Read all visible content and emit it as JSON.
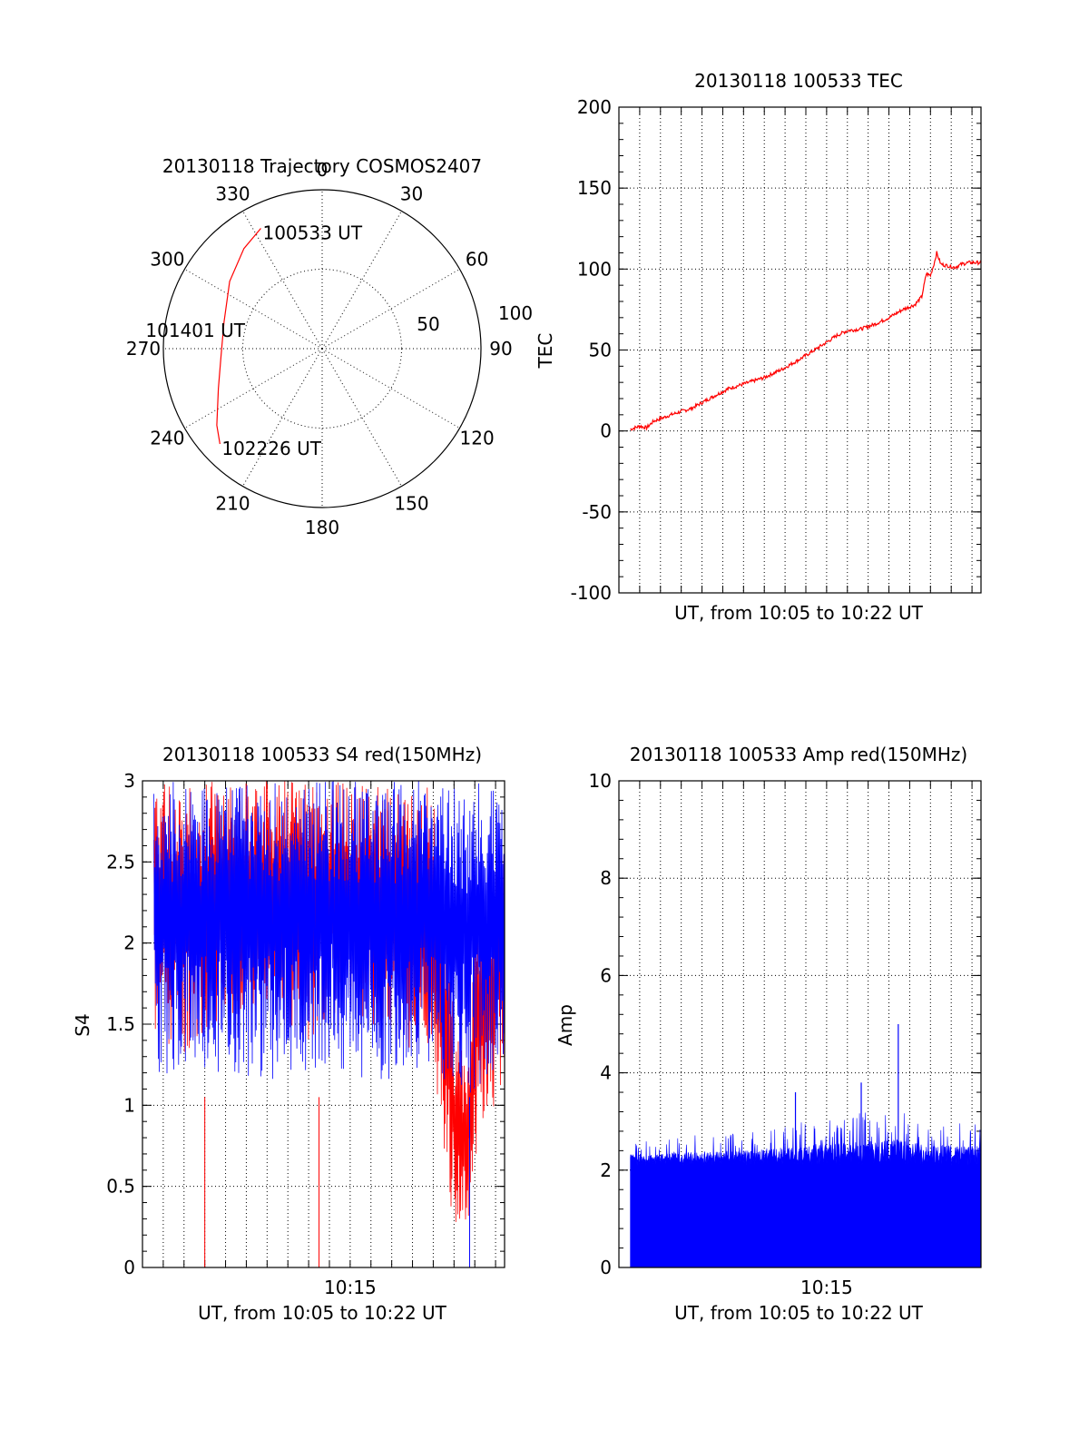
{
  "chart_data": [
    {
      "type": "polar",
      "title": "20130118 Trajectory COSMOS2407",
      "angle_labels": [
        "0",
        "30",
        "60",
        "90",
        "120",
        "150",
        "180",
        "210",
        "240",
        "270",
        "300",
        "330"
      ],
      "ring_labels": [
        "50",
        "100"
      ],
      "rlim": [
        0,
        100
      ],
      "series": [
        {
          "color": "#ff0000",
          "points": [
            {
              "az": 333,
              "r": 85
            },
            {
              "az": 322,
              "r": 80
            },
            {
              "az": 306,
              "r": 72
            },
            {
              "az": 285,
              "r": 64
            },
            {
              "az": 265,
              "r": 64
            },
            {
              "az": 249,
              "r": 70
            },
            {
              "az": 234,
              "r": 82
            },
            {
              "az": 227,
              "r": 88
            }
          ]
        }
      ],
      "annotations": [
        {
          "text": "100533 UT",
          "az": 333,
          "r": 85
        },
        {
          "text": "101401 UT",
          "az": 275,
          "r": 60
        },
        {
          "text": "102226 UT",
          "az": 227,
          "r": 88
        }
      ]
    },
    {
      "type": "line",
      "title": "20130118 100533 TEC",
      "xlabel": "UT, from 10:05 to 10:22 UT",
      "ylabel": "TEC",
      "xlim": [
        "10:05:00",
        "10:22:26"
      ],
      "ylim": [
        -100,
        200
      ],
      "yticks": [
        "-100",
        "-50",
        "0",
        "50",
        "100",
        "150",
        "200"
      ],
      "grid": true,
      "series": [
        {
          "color": "#ff0000",
          "points": [
            [
              "10:05:33",
              1
            ],
            [
              "10:06:00",
              3
            ],
            [
              "10:06:20",
              2
            ],
            [
              "10:06:40",
              6
            ],
            [
              "10:07:30",
              10
            ],
            [
              "10:08:30",
              14
            ],
            [
              "10:09:30",
              21
            ],
            [
              "10:10:15",
              26
            ],
            [
              "10:11:00",
              29
            ],
            [
              "10:12:00",
              33
            ],
            [
              "10:12:50",
              38
            ],
            [
              "10:13:40",
              44
            ],
            [
              "10:14:40",
              52
            ],
            [
              "10:15:30",
              59
            ],
            [
              "10:16:00",
              62
            ],
            [
              "10:16:40",
              63
            ],
            [
              "10:17:20",
              66
            ],
            [
              "10:18:00",
              70
            ],
            [
              "10:18:40",
              75
            ],
            [
              "10:19:15",
              78
            ],
            [
              "10:19:35",
              83
            ],
            [
              "10:19:48",
              97
            ],
            [
              "10:20:00",
              96
            ],
            [
              "10:20:10",
              103
            ],
            [
              "10:20:18",
              110
            ],
            [
              "10:20:30",
              103
            ],
            [
              "10:20:50",
              102
            ],
            [
              "10:21:10",
              101
            ],
            [
              "10:21:30",
              103
            ],
            [
              "10:21:50",
              104
            ],
            [
              "10:22:26",
              104
            ]
          ]
        }
      ]
    },
    {
      "type": "line",
      "title": "20130118 100533 S4 red(150MHz)",
      "xlabel": "UT, from 10:05 to 10:22 UT",
      "ylabel": "S4",
      "xlim": [
        "10:05:00",
        "10:22:26"
      ],
      "ylim": [
        0,
        3
      ],
      "yticks": [
        "0",
        "0.5",
        "1",
        "1.5",
        "2",
        "2.5",
        "3"
      ],
      "xticks": [
        "10:15"
      ],
      "grid": true,
      "series": [
        {
          "color": "#ff0000",
          "envelope": [
            [
              "10:05:33",
              1.4,
              3.0
            ],
            [
              "10:07:00",
              1.3,
              3.0
            ],
            [
              "10:09:00",
              1.5,
              3.0
            ],
            [
              "10:11:00",
              1.6,
              3.0
            ],
            [
              "10:13:00",
              1.4,
              3.0
            ],
            [
              "10:15:00",
              1.6,
              3.0
            ],
            [
              "10:17:00",
              1.4,
              3.0
            ],
            [
              "10:19:00",
              1.2,
              3.0
            ],
            [
              "10:19:40",
              0.5,
              2.2
            ],
            [
              "10:20:00",
              0.25,
              1.5
            ],
            [
              "10:20:40",
              0.25,
              1.2
            ],
            [
              "10:21:00",
              0.6,
              2.2
            ],
            [
              "10:22:26",
              1.2,
              2.6
            ]
          ],
          "dropouts": [
            [
              "10:08:00",
              0.0
            ],
            [
              "10:13:30",
              0.0
            ]
          ]
        },
        {
          "color": "#0000ff",
          "envelope": [
            [
              "10:05:33",
              1.2,
              3.0
            ],
            [
              "10:07:00",
              1.1,
              3.0
            ],
            [
              "10:09:00",
              1.2,
              3.0
            ],
            [
              "10:11:00",
              1.15,
              3.0
            ],
            [
              "10:13:00",
              1.2,
              3.0
            ],
            [
              "10:15:00",
              1.15,
              3.0
            ],
            [
              "10:17:00",
              1.15,
              3.0
            ],
            [
              "10:19:00",
              1.2,
              3.0
            ],
            [
              "10:20:30",
              1.0,
              3.0
            ],
            [
              "10:22:26",
              1.3,
              3.0
            ]
          ],
          "dropouts": [
            [
              "10:20:45",
              0.0
            ]
          ]
        }
      ]
    },
    {
      "type": "line",
      "title": "20130118 100533 Amp red(150MHz)",
      "xlabel": "UT, from 10:05 to 10:22 UT",
      "ylabel": "Amp",
      "xlim": [
        "10:05:00",
        "10:22:26"
      ],
      "ylim": [
        0,
        10
      ],
      "yticks": [
        "0",
        "2",
        "4",
        "6",
        "8",
        "10"
      ],
      "xticks": [
        "10:15"
      ],
      "grid": true,
      "series": [
        {
          "color": "#0000ff",
          "envelope": [
            [
              "10:05:33",
              0,
              2.6
            ],
            [
              "10:08:00",
              0,
              2.7
            ],
            [
              "10:11:00",
              0,
              2.8
            ],
            [
              "10:14:00",
              0,
              3.0
            ],
            [
              "10:17:00",
              0,
              3.2
            ],
            [
              "10:18:20",
              0,
              3.3
            ],
            [
              "10:20:00",
              0,
              3.0
            ],
            [
              "10:22:26",
              0,
              3.0
            ]
          ],
          "floor": 2.1,
          "spikes": [
            [
              "10:18:27",
              5.0
            ],
            [
              "10:16:40",
              3.8
            ],
            [
              "10:13:30",
              3.6
            ]
          ]
        }
      ]
    }
  ]
}
